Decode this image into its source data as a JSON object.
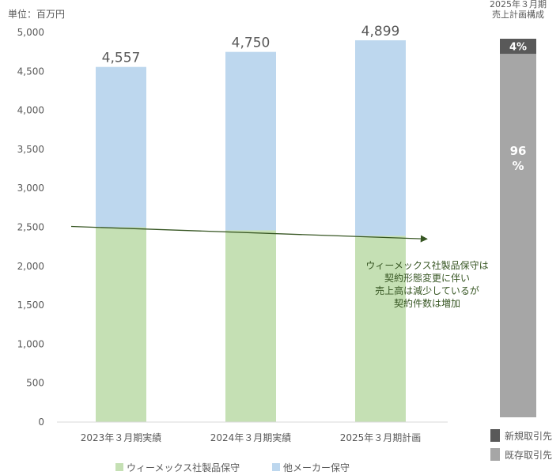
{
  "unit_label": "単位：百万円",
  "chart_data": [
    {
      "type": "bar",
      "stacked": true,
      "categories": [
        "2023年３月期実績",
        "2024年３月期実績",
        "2025年３月期計画"
      ],
      "series": [
        {
          "name": "ウィーメックス社製品保守",
          "values": [
            2500,
            2460,
            2390
          ],
          "color": "#c5e0b4"
        },
        {
          "name": "他メーカー保守",
          "values": [
            2057,
            2290,
            2509
          ],
          "color": "#bdd7ee"
        }
      ],
      "totals": [
        "4,557",
        "4,750",
        "4,899"
      ],
      "total_values": [
        4557,
        4750,
        4899
      ],
      "ylim": [
        0,
        5000
      ],
      "yticks": [
        "0",
        "500",
        "1,000",
        "1,500",
        "2,000",
        "2,500",
        "3,000",
        "3,500",
        "4,000",
        "4,500",
        "5,000"
      ],
      "ytick_values": [
        0,
        500,
        1000,
        1500,
        2000,
        2500,
        3000,
        3500,
        4000,
        4500,
        5000
      ],
      "grid": false,
      "legend_position": "bottom",
      "trend_arrow": {
        "from": 2500,
        "to": 2410,
        "color": "#375623"
      },
      "annotation": [
        "ウィーメックス社製品保守は",
        "契約形態変更に伴い",
        "売上高は減少しているが",
        "契約件数は増加"
      ]
    },
    {
      "type": "bar",
      "stacked": true,
      "title": [
        "2025年３月期",
        "売上計画構成"
      ],
      "segments": [
        {
          "name": "既存取引先",
          "value": 96,
          "label": [
            "96",
            "%"
          ],
          "color": "#a6a6a6"
        },
        {
          "name": "新規取引先",
          "value": 4,
          "label": [
            "4%"
          ],
          "color": "#595959"
        }
      ],
      "legend": [
        "新規取引先",
        "既存取引先"
      ],
      "legend_position": "bottom"
    }
  ]
}
